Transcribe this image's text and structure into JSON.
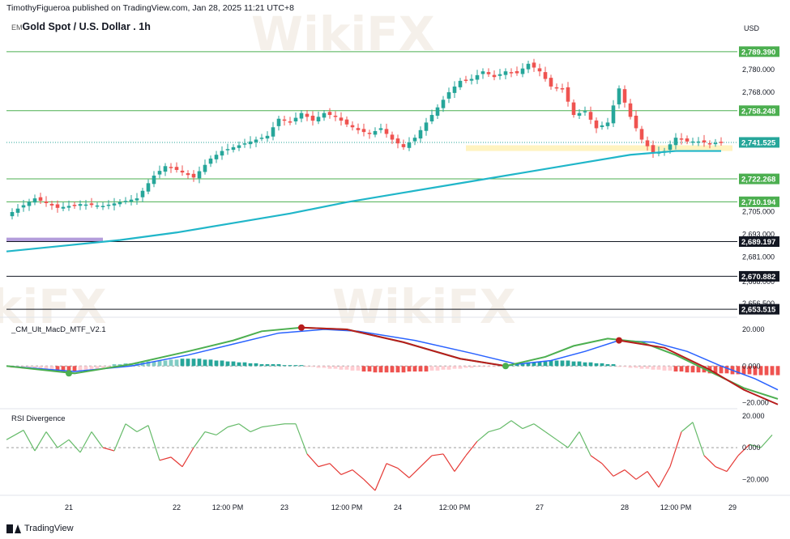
{
  "header": {
    "publisher_line": "TimothyFigueroa published on TradingView.com, Jan 28, 2025 11:21 UTC+8",
    "title_prefix": "EM",
    "title": "Gold Spot / U.S. Dollar . 1h"
  },
  "brand": {
    "name": "TradingView",
    "icon": "tradingview-logo-icon"
  },
  "watermark": {
    "text": "WikiFX"
  },
  "colors": {
    "up": "#26a69a",
    "down": "#ef5350",
    "ema": "#20b6c9",
    "level": "#4caf50",
    "support_zone": "#fff3c0",
    "purple_zone": "#b39ddb",
    "macd_fast": "#4caf50",
    "macd_slow": "#2962ff",
    "macd_signal_bear": "#b71c1c",
    "rsi_bull": "#66bb6a",
    "rsi_bear": "#e53935"
  },
  "chart_data": [
    {
      "type": "candlestick",
      "title": "Gold Spot / U.S. Dollar . 1h",
      "currency": "USD",
      "ylim": [
        2651,
        2797
      ],
      "y_ticks": [
        2780.0,
        2705.0,
        2693.0,
        2681.0
      ],
      "y_ticks_partial": [
        "2,768.000",
        "2,668.000",
        "2,656.500"
      ],
      "price_labels": [
        {
          "value": 2789.39,
          "label": "2,789.390",
          "style": "green"
        },
        {
          "value": 2758.248,
          "label": "2,758.248",
          "style": "green"
        },
        {
          "value": 2741.525,
          "label": "2,741.525",
          "style": "current"
        },
        {
          "value": 2722.268,
          "label": "2,722.268",
          "style": "green"
        },
        {
          "value": 2710.194,
          "label": "2,710.194",
          "style": "green"
        },
        {
          "value": 2689.197,
          "label": "2,689.197",
          "style": "black"
        },
        {
          "value": 2670.882,
          "label": "2,670.882",
          "style": "black"
        },
        {
          "value": 2653.515,
          "label": "2,653.515",
          "style": "black"
        }
      ],
      "price_path": [
        [
          0,
          2703
        ],
        [
          5,
          2712
        ],
        [
          9,
          2707
        ],
        [
          13,
          2709
        ],
        [
          17,
          2708
        ],
        [
          20,
          2710
        ],
        [
          23,
          2712
        ],
        [
          26,
          2724
        ],
        [
          28,
          2729
        ],
        [
          30,
          2727
        ],
        [
          33,
          2723
        ],
        [
          36,
          2733
        ],
        [
          38,
          2737
        ],
        [
          40,
          2739
        ],
        [
          43,
          2742
        ],
        [
          46,
          2745
        ],
        [
          48,
          2754
        ],
        [
          50,
          2752
        ],
        [
          52,
          2757
        ],
        [
          54,
          2753
        ],
        [
          56,
          2757
        ],
        [
          58,
          2755
        ],
        [
          60,
          2751
        ],
        [
          62,
          2748
        ],
        [
          64,
          2746
        ],
        [
          66,
          2749
        ],
        [
          68,
          2743
        ],
        [
          70,
          2739
        ],
        [
          72,
          2744
        ],
        [
          74,
          2752
        ],
        [
          76,
          2760
        ],
        [
          78,
          2768
        ],
        [
          80,
          2774
        ],
        [
          82,
          2775
        ],
        [
          84,
          2779
        ],
        [
          86,
          2776
        ],
        [
          88,
          2779
        ],
        [
          90,
          2778
        ],
        [
          92,
          2783
        ],
        [
          94,
          2779
        ],
        [
          96,
          2771
        ],
        [
          98,
          2770
        ],
        [
          100,
          2756
        ],
        [
          102,
          2758
        ],
        [
          104,
          2749
        ],
        [
          106,
          2752
        ],
        [
          108,
          2770
        ],
        [
          110,
          2755
        ],
        [
          112,
          2743
        ],
        [
          114,
          2736
        ],
        [
          116,
          2737
        ],
        [
          118,
          2744
        ],
        [
          120,
          2742
        ],
        [
          122,
          2742
        ],
        [
          124,
          2741
        ],
        [
          126,
          2741.5
        ]
      ],
      "ema_path": [
        [
          0,
          2684
        ],
        [
          10,
          2687
        ],
        [
          20,
          2690
        ],
        [
          30,
          2694
        ],
        [
          40,
          2699
        ],
        [
          50,
          2704
        ],
        [
          60,
          2710
        ],
        [
          70,
          2715
        ],
        [
          80,
          2720
        ],
        [
          90,
          2725
        ],
        [
          100,
          2730
        ],
        [
          110,
          2735
        ],
        [
          118,
          2737
        ],
        [
          126,
          2737
        ]
      ],
      "purple_zone": {
        "x_from": 0,
        "x_to": 17,
        "value": 2690
      },
      "support_zone": {
        "x_from": 81,
        "x_to": 128,
        "low": 2737,
        "high": 2740
      }
    },
    {
      "type": "line",
      "title": "_CM_Ult_MacD_MTF_V2.1",
      "ylim": [
        -22,
        24
      ],
      "y_ticks": [
        20.0,
        0.0,
        -20.0
      ],
      "fast": [
        [
          0,
          0
        ],
        [
          12,
          -4
        ],
        [
          22,
          1
        ],
        [
          32,
          8
        ],
        [
          40,
          14
        ],
        [
          45,
          19
        ],
        [
          52,
          21
        ],
        [
          60,
          20
        ],
        [
          70,
          13
        ],
        [
          80,
          4
        ],
        [
          88,
          0
        ],
        [
          95,
          5
        ],
        [
          100,
          11
        ],
        [
          106,
          15
        ],
        [
          112,
          13
        ],
        [
          118,
          6
        ],
        [
          124,
          -3
        ],
        [
          130,
          -12
        ],
        [
          136,
          -18
        ]
      ],
      "slow": [
        [
          0,
          0
        ],
        [
          12,
          -3
        ],
        [
          22,
          0
        ],
        [
          32,
          6
        ],
        [
          40,
          12
        ],
        [
          48,
          18
        ],
        [
          56,
          20
        ],
        [
          62,
          19
        ],
        [
          72,
          14
        ],
        [
          82,
          7
        ],
        [
          90,
          1
        ],
        [
          96,
          3
        ],
        [
          102,
          8
        ],
        [
          108,
          14
        ],
        [
          114,
          13
        ],
        [
          120,
          8
        ],
        [
          126,
          0
        ],
        [
          132,
          -7
        ],
        [
          136,
          -13
        ]
      ],
      "signal": [
        [
          52,
          21
        ],
        [
          60,
          20
        ],
        [
          70,
          13
        ],
        [
          80,
          4
        ],
        [
          88,
          0
        ],
        [
          108,
          14
        ],
        [
          116,
          10
        ],
        [
          124,
          -2
        ],
        [
          130,
          -13
        ],
        [
          136,
          -21
        ]
      ],
      "histogram": [
        [
          1,
          -1
        ],
        [
          3,
          -1.5
        ],
        [
          5,
          -2
        ],
        [
          7,
          -2.5
        ],
        [
          9,
          -3
        ],
        [
          11,
          -3
        ],
        [
          13,
          -2.5
        ],
        [
          15,
          -2
        ],
        [
          17,
          -1
        ],
        [
          19,
          1
        ],
        [
          21,
          1.5
        ],
        [
          23,
          2
        ],
        [
          25,
          2.5
        ],
        [
          27,
          3
        ],
        [
          29,
          3.5
        ],
        [
          31,
          4
        ],
        [
          33,
          4
        ],
        [
          35,
          3.5
        ],
        [
          37,
          3
        ],
        [
          39,
          2.5
        ],
        [
          41,
          2
        ],
        [
          43,
          1.5
        ],
        [
          45,
          1
        ],
        [
          47,
          1
        ],
        [
          49,
          0.5
        ],
        [
          51,
          0.5
        ],
        [
          53,
          -0.5
        ],
        [
          55,
          -1
        ],
        [
          57,
          -1.5
        ],
        [
          59,
          -2
        ],
        [
          61,
          -2.5
        ],
        [
          63,
          -3
        ],
        [
          65,
          -3.5
        ],
        [
          67,
          -3.5
        ],
        [
          69,
          -3.5
        ],
        [
          71,
          -3
        ],
        [
          73,
          -3
        ],
        [
          75,
          -2.5
        ],
        [
          77,
          -2
        ],
        [
          79,
          -1.5
        ],
        [
          81,
          -1
        ],
        [
          83,
          -0.5
        ],
        [
          85,
          -0.5
        ],
        [
          88,
          1
        ],
        [
          90,
          1.5
        ],
        [
          92,
          2
        ],
        [
          94,
          2.5
        ],
        [
          96,
          3
        ],
        [
          98,
          3
        ],
        [
          100,
          2.5
        ],
        [
          102,
          2
        ],
        [
          104,
          1.5
        ],
        [
          106,
          1
        ],
        [
          108,
          -0.5
        ],
        [
          110,
          -1
        ],
        [
          112,
          -1.5
        ],
        [
          114,
          -2
        ],
        [
          116,
          -2.5
        ],
        [
          118,
          -3
        ],
        [
          120,
          -3.5
        ],
        [
          122,
          -3.5
        ],
        [
          124,
          -4
        ],
        [
          126,
          -4
        ],
        [
          128,
          -4.5
        ],
        [
          130,
          -4.5
        ],
        [
          132,
          -5
        ],
        [
          134,
          -5
        ],
        [
          136,
          -5
        ]
      ],
      "cross_points": [
        {
          "x": 11,
          "value": -4,
          "kind": "bullish"
        },
        {
          "x": 52,
          "value": 21,
          "kind": "bearish"
        },
        {
          "x": 88,
          "value": 0,
          "kind": "bullish"
        },
        {
          "x": 108,
          "value": 14,
          "kind": "bearish"
        }
      ]
    },
    {
      "type": "line",
      "title": "RSI Divergence",
      "ylim": [
        -28,
        22
      ],
      "y_ticks": [
        20.0,
        0.0,
        -20.0
      ],
      "values": [
        [
          0,
          5
        ],
        [
          3,
          11
        ],
        [
          5,
          -2
        ],
        [
          7,
          10
        ],
        [
          9,
          0
        ],
        [
          11,
          5
        ],
        [
          13,
          -3
        ],
        [
          15,
          10
        ],
        [
          17,
          0
        ],
        [
          19,
          -2
        ],
        [
          21,
          15
        ],
        [
          23,
          10
        ],
        [
          25,
          14
        ],
        [
          27,
          -8
        ],
        [
          29,
          -6
        ],
        [
          31,
          -12
        ],
        [
          33,
          0
        ],
        [
          35,
          10
        ],
        [
          37,
          8
        ],
        [
          39,
          13
        ],
        [
          41,
          15
        ],
        [
          43,
          10
        ],
        [
          45,
          13
        ],
        [
          47,
          14
        ],
        [
          49,
          15
        ],
        [
          51,
          15
        ],
        [
          53,
          -4
        ],
        [
          55,
          -12
        ],
        [
          57,
          -10
        ],
        [
          59,
          -17
        ],
        [
          61,
          -14
        ],
        [
          63,
          -20
        ],
        [
          65,
          -27
        ],
        [
          67,
          -10
        ],
        [
          69,
          -13
        ],
        [
          71,
          -19
        ],
        [
          73,
          -12
        ],
        [
          75,
          -5
        ],
        [
          77,
          -4
        ],
        [
          79,
          -15
        ],
        [
          81,
          -5
        ],
        [
          83,
          4
        ],
        [
          85,
          10
        ],
        [
          87,
          12
        ],
        [
          89,
          17
        ],
        [
          91,
          12
        ],
        [
          93,
          15
        ],
        [
          95,
          10
        ],
        [
          97,
          5
        ],
        [
          99,
          0
        ],
        [
          101,
          10
        ],
        [
          103,
          -5
        ],
        [
          105,
          -10
        ],
        [
          107,
          -18
        ],
        [
          109,
          -14
        ],
        [
          111,
          -20
        ],
        [
          113,
          -15
        ],
        [
          115,
          -25
        ],
        [
          117,
          -12
        ],
        [
          119,
          10
        ],
        [
          121,
          16
        ],
        [
          123,
          -5
        ],
        [
          125,
          -12
        ],
        [
          127,
          -15
        ],
        [
          129,
          -5
        ],
        [
          131,
          2
        ],
        [
          133,
          0
        ],
        [
          135,
          8
        ]
      ]
    }
  ],
  "x_axis": {
    "labels": [
      {
        "x": 11,
        "label": "21"
      },
      {
        "x": 30,
        "label": "22"
      },
      {
        "x": 39,
        "label": "12:00 PM"
      },
      {
        "x": 49,
        "label": "23"
      },
      {
        "x": 60,
        "label": "12:00 PM"
      },
      {
        "x": 69,
        "label": "24"
      },
      {
        "x": 79,
        "label": "12:00 PM"
      },
      {
        "x": 94,
        "label": "27"
      },
      {
        "x": 109,
        "label": "28"
      },
      {
        "x": 118,
        "label": "12:00 PM"
      },
      {
        "x": 128,
        "label": "29"
      }
    ]
  }
}
